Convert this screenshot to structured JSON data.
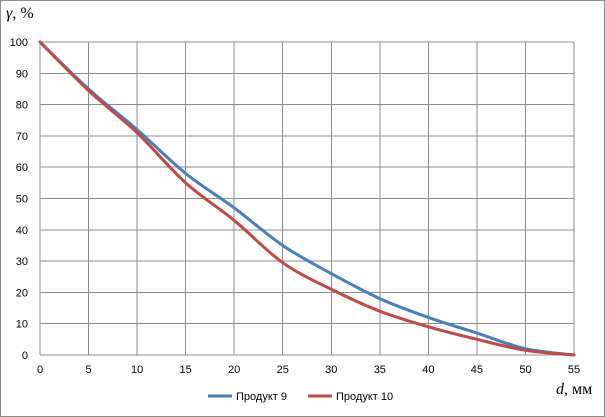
{
  "chart_data": {
    "type": "line",
    "ylabel_symbol": "γ",
    "ylabel_unit": ", %",
    "xlabel_symbol": "d",
    "xlabel_unit": ", мм",
    "xlim": [
      0,
      55
    ],
    "ylim": [
      0,
      100
    ],
    "xticks": [
      0,
      5,
      10,
      15,
      20,
      25,
      30,
      35,
      40,
      45,
      50,
      55
    ],
    "yticks": [
      0,
      10,
      20,
      30,
      40,
      50,
      60,
      70,
      80,
      90,
      100
    ],
    "grid": true,
    "legend_position": "bottom",
    "series": [
      {
        "name": "Продукт 9",
        "color": "#4a7ebb",
        "x": [
          0,
          5,
          10,
          15,
          20,
          25,
          30,
          35,
          40,
          45,
          50,
          55
        ],
        "y": [
          100,
          85,
          72,
          58,
          47,
          35,
          26,
          18,
          12,
          7,
          2,
          0
        ]
      },
      {
        "name": "Продукт 10",
        "color": "#be4b48",
        "x": [
          0,
          5,
          10,
          15,
          20,
          25,
          30,
          35,
          40,
          45,
          50,
          55
        ],
        "y": [
          100,
          84.5,
          71,
          55,
          43,
          29.5,
          21,
          14,
          9,
          5,
          1.5,
          0
        ]
      }
    ]
  }
}
